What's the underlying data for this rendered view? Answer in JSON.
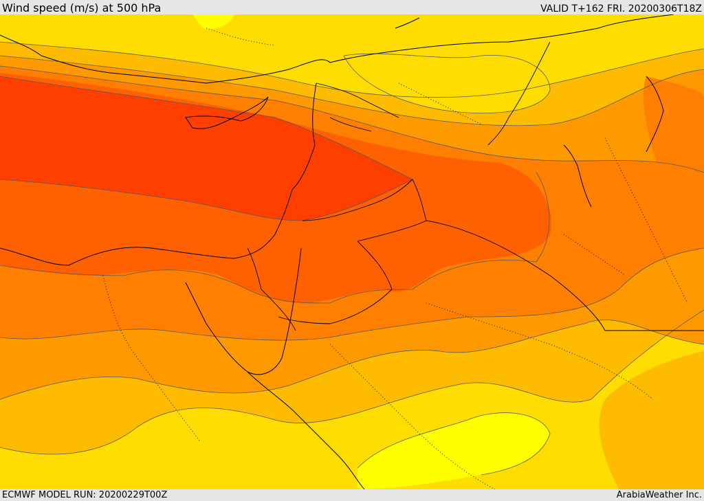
{
  "header": {
    "title": "Wind speed (m/s) at 500 hPa",
    "valid_time": "VALID T+162 FRI. 20200306T18Z"
  },
  "footer": {
    "model_run": "ECMWF MODEL RUN: 20200229T00Z",
    "credit": "ArabiaWeather Inc."
  },
  "map": {
    "field": "wind speed at 500 hPa",
    "colors": {
      "band_1": "#ffff00",
      "band_2": "#ffdd00",
      "band_3": "#ffbb00",
      "band_4": "#ff9900",
      "band_5": "#ff7f00",
      "band_6": "#ff6000",
      "band_7": "#ff3f00",
      "contour_line": "#595959",
      "coastline": "#000000",
      "border_dotted": "#000000"
    }
  }
}
